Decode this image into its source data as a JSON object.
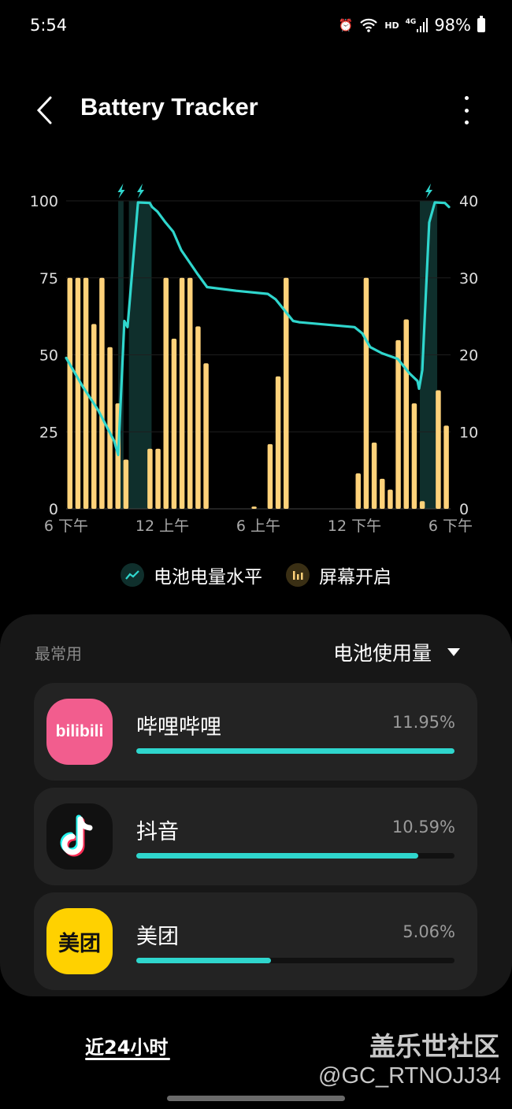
{
  "status_bar": {
    "time": "5:54",
    "battery": "98%",
    "network": "4G",
    "wifi_badge": "HD",
    "icons": [
      "alarm-icon",
      "wifi-icon",
      "signal-icon",
      "battery-icon"
    ]
  },
  "header": {
    "title": "Battery Tracker",
    "back_icon": "chevron-left-icon",
    "more_icon": "more-vertical-icon"
  },
  "chart_data": {
    "type": "bar+line",
    "left_axis": {
      "ticks": [
        "100",
        "75",
        "50",
        "25",
        "0"
      ],
      "range": [
        0,
        100
      ]
    },
    "right_axis": {
      "ticks": [
        "40",
        "30",
        "20",
        "10",
        "0"
      ],
      "range": [
        0,
        40
      ]
    },
    "x_ticks": [
      {
        "time": "18:00",
        "label": "6 下午"
      },
      {
        "time": "00:00",
        "label": "12 上午"
      },
      {
        "time": "06:00",
        "label": "6 上午"
      },
      {
        "time": "12:00",
        "label": "12 下午"
      },
      {
        "time": "18:00+",
        "label": "6 下午"
      }
    ],
    "x_range": [
      "18:00",
      "18:00 next day"
    ],
    "grid": true,
    "bar_interval_minutes": 30,
    "screen_on_minutes": [
      30,
      30,
      30,
      24,
      30,
      21,
      13.7,
      6.4,
      0,
      0,
      7.8,
      7.8,
      30,
      22.1,
      30,
      30,
      23.7,
      18.9,
      0,
      0,
      0,
      0,
      0,
      0.3,
      0,
      8.4,
      17.2,
      30,
      0,
      0,
      0,
      0,
      0,
      0,
      0,
      0,
      4.6,
      30,
      8.6,
      3.9,
      2.5,
      21.9,
      24.6,
      13.7,
      1.0,
      0,
      15.4,
      10.8
    ],
    "battery_level": [
      [
        "18:00",
        49
      ],
      [
        "19:00",
        40
      ],
      [
        "20:00",
        32
      ],
      [
        "21:00",
        22
      ],
      [
        "21:15",
        17.5
      ],
      [
        "21:38",
        61
      ],
      [
        "21:50",
        59
      ],
      [
        "22:29",
        99.5
      ],
      [
        "23:13",
        99.3
      ],
      [
        "23:22",
        98
      ],
      [
        "23:42",
        96.5
      ],
      [
        "00:12",
        93
      ],
      [
        "00:41",
        90
      ],
      [
        "01:11",
        84
      ],
      [
        "02:10",
        76.5
      ],
      [
        "02:48",
        72
      ],
      [
        "04:37",
        70.8
      ],
      [
        "06:35",
        69.8
      ],
      [
        "07:05",
        68
      ],
      [
        "08:10",
        61
      ],
      [
        "08:33",
        60.6
      ],
      [
        "12:00",
        59
      ],
      [
        "12:29",
        57
      ],
      [
        "12:59",
        52.5
      ],
      [
        "13:43",
        50.5
      ],
      [
        "14:42",
        48.7
      ],
      [
        "15:26",
        44
      ],
      [
        "15:56",
        41.5
      ],
      [
        "16:02",
        39
      ],
      [
        "16:14",
        45
      ],
      [
        "16:40",
        93
      ],
      [
        "17:01",
        99.5
      ],
      [
        "17:39",
        99.3
      ],
      [
        "17:54",
        98
      ]
    ],
    "charging_periods": [
      [
        "21:15",
        "21:35"
      ],
      [
        "21:55",
        "23:20"
      ],
      [
        "16:05",
        "17:10"
      ]
    ],
    "legend": [
      {
        "name": "电池电量水平",
        "icon": "trend-line-icon"
      },
      {
        "name": "屏幕开启",
        "icon": "bar-chart-icon"
      }
    ],
    "legend_placement": "bottom",
    "colors": {
      "line": "#2fd6cd",
      "bars": "#ffd27a",
      "charging": "#0f2f2c",
      "bolt": "#2fd6cd"
    }
  },
  "usage": {
    "section_label": "最常用",
    "sort_label": "电池使用量",
    "apps": [
      {
        "name": "哔哩哔哩",
        "percent": "11.95%",
        "bar_fill": 100,
        "icon_text": "bilibili",
        "icon_bg": "#f25d8e"
      },
      {
        "name": "抖音",
        "percent": "10.59%",
        "bar_fill": 88.6,
        "icon_bg": "#111111"
      },
      {
        "name": "美团",
        "percent": "5.06%",
        "bar_fill": 42.3,
        "icon_text": "美团",
        "icon_bg": "#ffd100"
      }
    ],
    "accent": "#2fd6cd"
  },
  "tabs": {
    "active": "近24小时"
  },
  "watermark": {
    "line1": "盖乐世社区",
    "line2": "@GC_RTNOJJ34"
  }
}
